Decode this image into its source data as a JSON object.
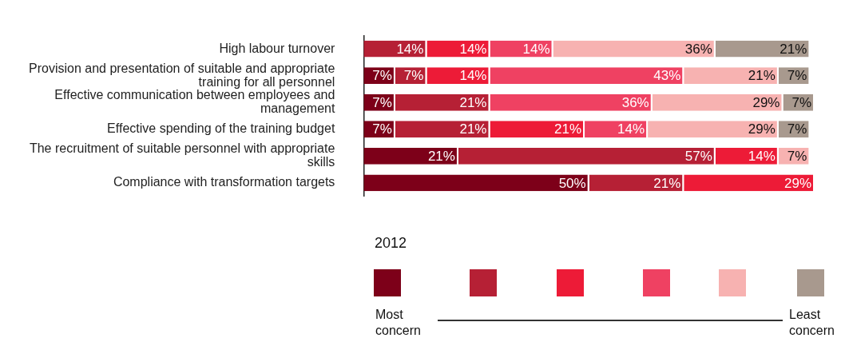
{
  "chart_data": {
    "type": "bar",
    "orientation": "horizontal",
    "stacked": true,
    "categories": [
      "High labour turnover",
      "Provision and presentation of suitable and appropriate training for all personnel",
      "Effective communication between employees and management",
      "Effective spending of the training budget",
      "The recruitment of suitable personnel with appropriate skills",
      "Compliance with transformation targets"
    ],
    "series": [
      {
        "color": "#7d0019",
        "values": [
          null,
          7,
          7,
          7,
          21,
          50
        ],
        "value_labels": [
          null,
          "7%",
          "7%",
          "7%",
          "21%",
          "50%"
        ]
      },
      {
        "color": "#b62035",
        "values": [
          14,
          7,
          21,
          21,
          57,
          21
        ],
        "value_labels": [
          "14%",
          "7%",
          "21%",
          "21%",
          "57%",
          "21%"
        ]
      },
      {
        "color": "#ed1b37",
        "values": [
          14,
          14,
          null,
          21,
          14,
          29
        ],
        "value_labels": [
          "14%",
          "14%",
          null,
          "21%",
          "14%",
          "29%"
        ]
      },
      {
        "color": "#ef4162",
        "values": [
          14,
          43,
          36,
          14,
          null,
          null
        ],
        "value_labels": [
          "14%",
          "43%",
          "36%",
          "14%",
          null,
          null
        ]
      },
      {
        "color": "#f7b2b1",
        "values": [
          36,
          21,
          29,
          29,
          7,
          null
        ],
        "value_labels": [
          "36%",
          "21%",
          "29%",
          "29%",
          "7%",
          null
        ]
      },
      {
        "color": "#a8998e",
        "values": [
          21,
          7,
          7,
          7,
          null,
          null
        ],
        "value_labels": [
          "21%",
          "7%",
          "7%",
          "7%",
          null,
          null
        ]
      }
    ],
    "tick_labels": "y",
    "legend_title": "2012",
    "annotations": [
      "Most concern",
      "Least concern"
    ]
  }
}
